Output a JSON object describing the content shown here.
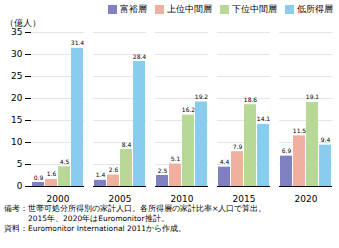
{
  "chart_data": {
    "type": "bar",
    "ylabel": "（億人）",
    "categories": [
      "2000",
      "2005",
      "2010",
      "2015",
      "2020"
    ],
    "series": [
      {
        "name": "富裕層",
        "color": "#8080c0",
        "values": [
          0.9,
          1.4,
          2.5,
          4.4,
          6.9
        ]
      },
      {
        "name": "上位中間層",
        "color": "#f0b0a0",
        "values": [
          1.6,
          2.6,
          5.1,
          7.9,
          11.5
        ]
      },
      {
        "name": "下位中間層",
        "color": "#b8d898",
        "values": [
          4.5,
          8.4,
          16.2,
          18.6,
          19.1
        ]
      },
      {
        "name": "低所得層",
        "color": "#88ccee",
        "values": [
          31.4,
          28.4,
          19.2,
          14.1,
          9.4
        ]
      }
    ],
    "ylim": [
      0,
      35
    ],
    "yticks": [
      0,
      5,
      10,
      15,
      20,
      25,
      30,
      35
    ],
    "grid": true,
    "legend": "upper right",
    "data_labels": true,
    "annotations": [
      "備考：世帯可処分所得別の家計人口。各所得層の家計比率×人口で算出。",
      "　　　2015年、2020年はEuromonitor推計。",
      "資料：Euromonitor International 2011から作成。"
    ]
  }
}
